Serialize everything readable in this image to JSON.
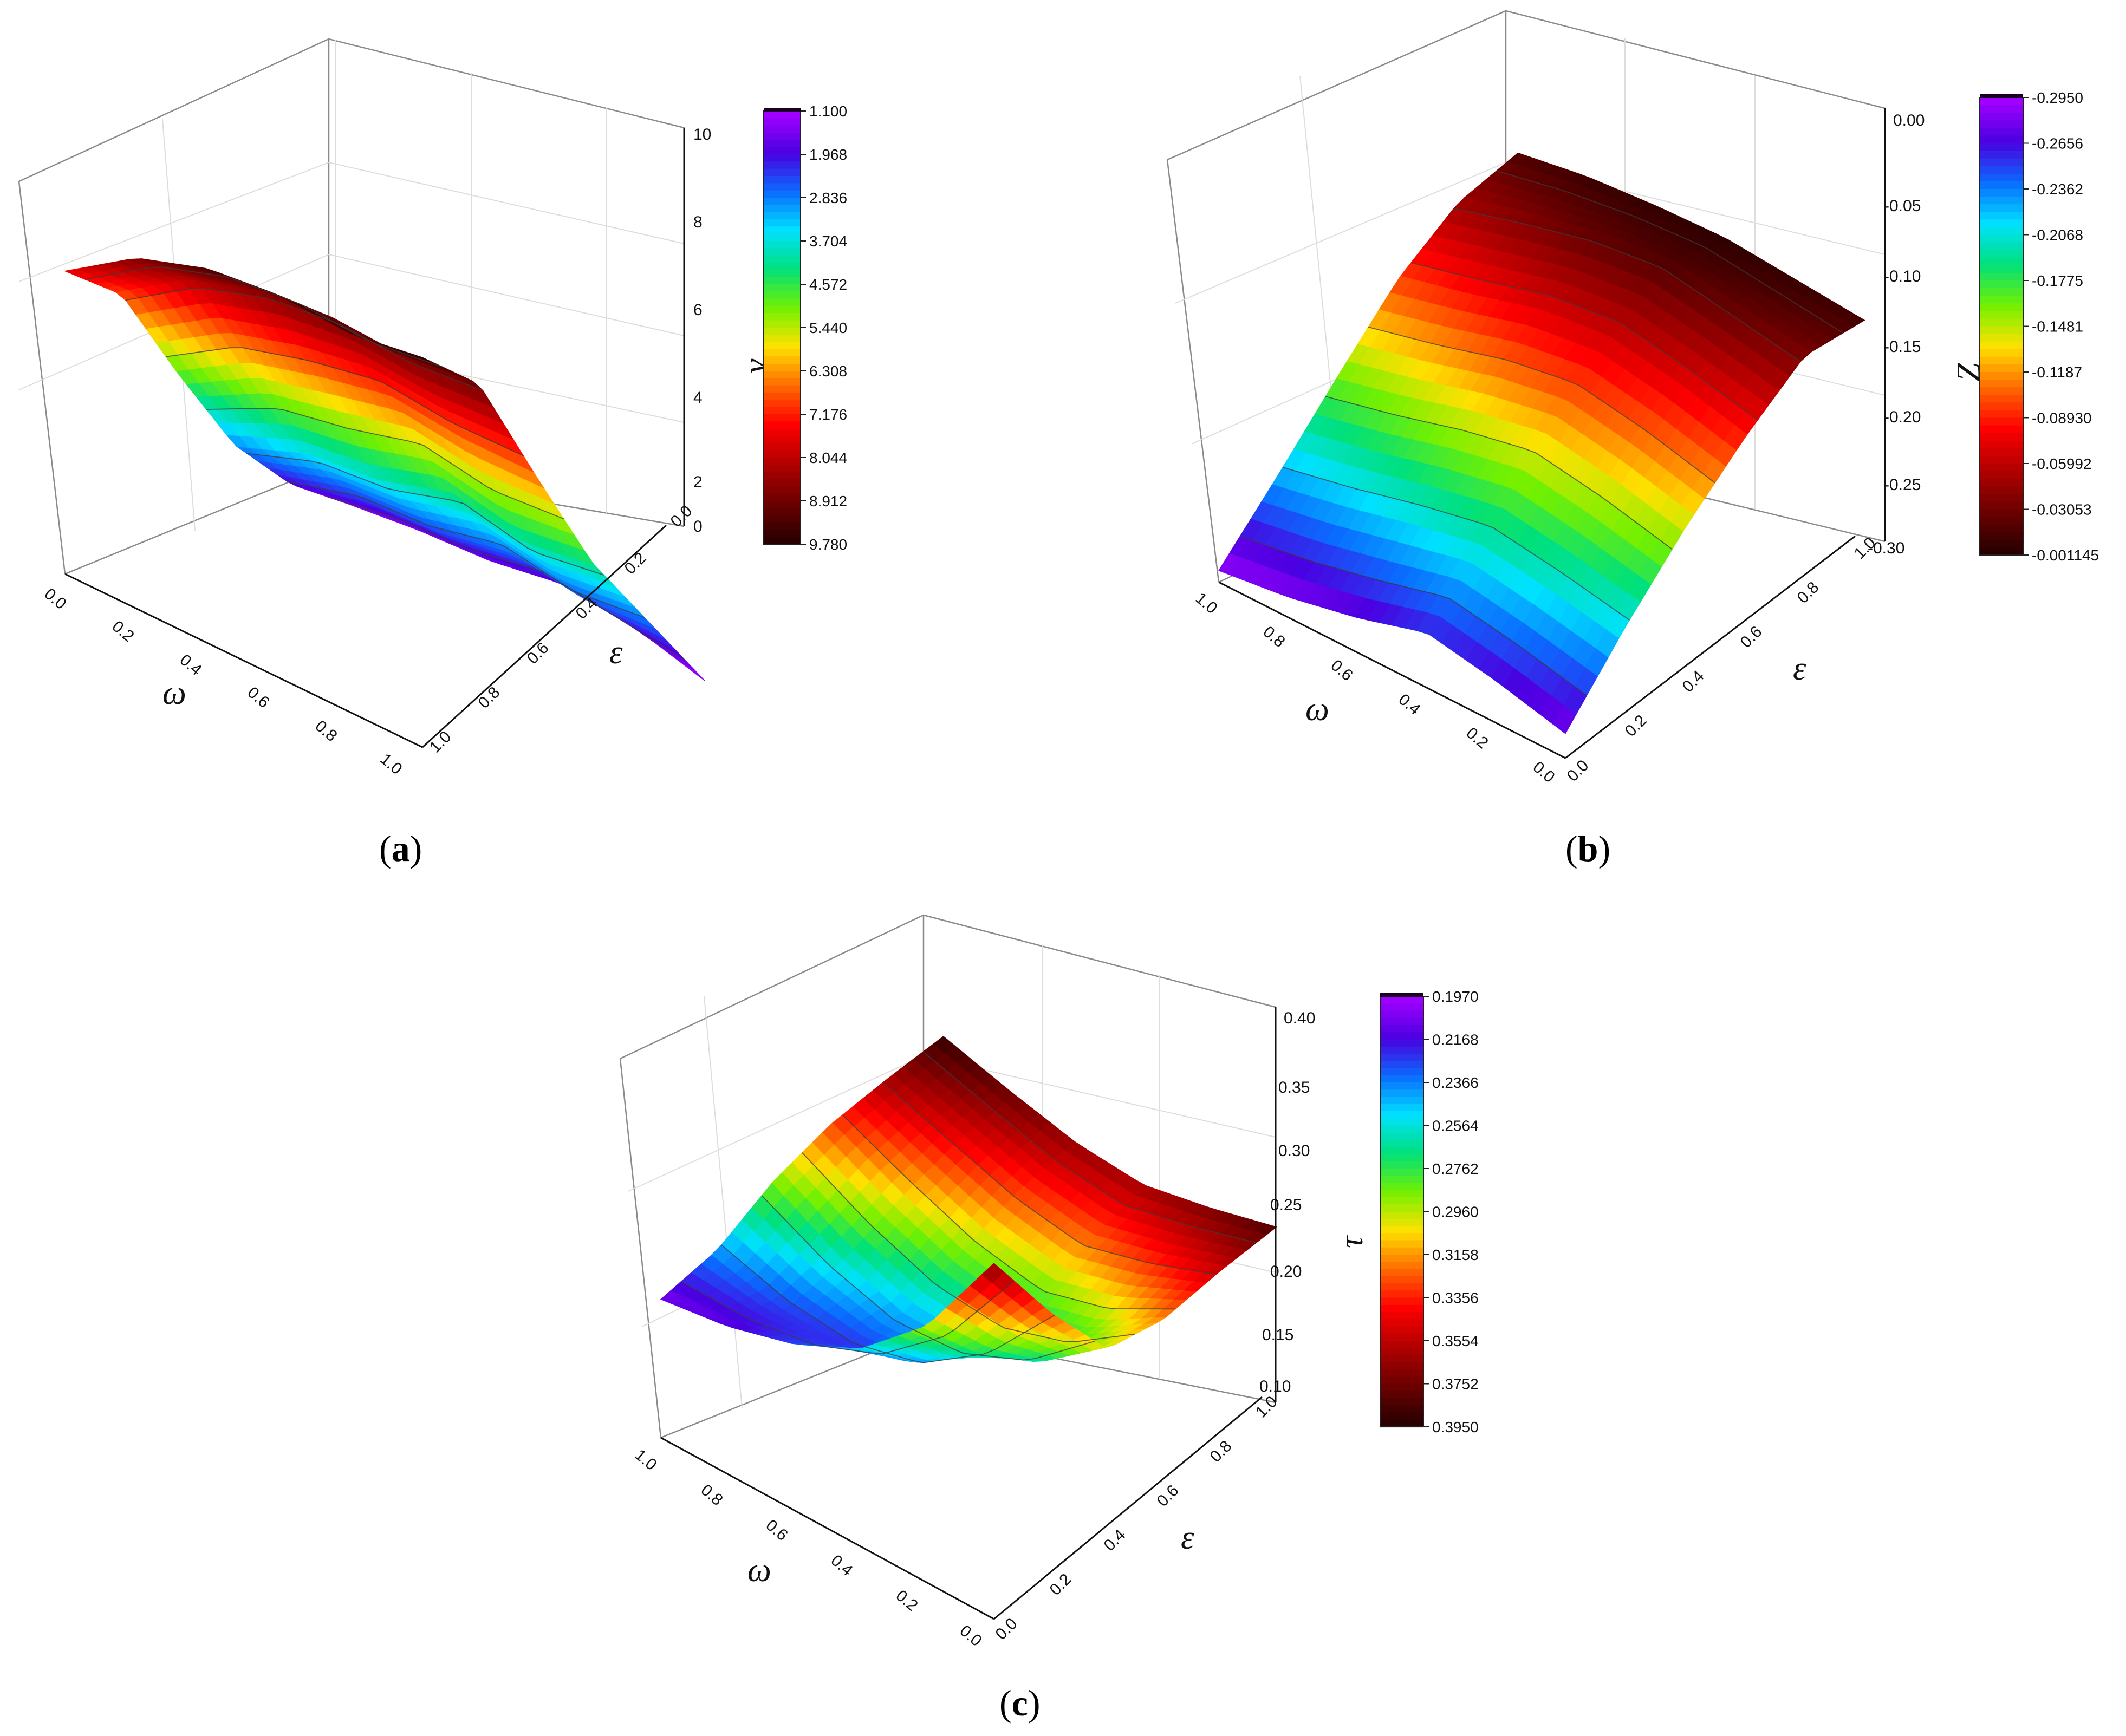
{
  "chart_data": [
    {
      "type": "surface3d",
      "panel": "(a)",
      "panel_letter": "a",
      "x": {
        "label": "ω",
        "range": [
          0,
          1
        ],
        "ticks": [
          "0.0",
          "0.2",
          "0.4",
          "0.6",
          "0.8",
          "1.0"
        ]
      },
      "y": {
        "label": "ε",
        "range": [
          0,
          1
        ],
        "ticks": [
          "0.0",
          "0.2",
          "0.4",
          "0.6",
          "0.8",
          "1.0"
        ]
      },
      "z": {
        "label": "v",
        "label_sub": "Z",
        "range": [
          0,
          10
        ],
        "ticks": [
          "0",
          "2",
          "4",
          "6",
          "8",
          "10"
        ]
      },
      "colorbar": {
        "levels": [
          "1.100",
          "1.968",
          "2.836",
          "3.704",
          "4.572",
          "5.440",
          "6.308",
          "7.176",
          "8.044",
          "8.912",
          "9.780"
        ]
      },
      "surface": {
        "orientation": "a",
        "grid_x": [
          0,
          0.2,
          0.4,
          0.6,
          0.8,
          1.0
        ],
        "grid_y": [
          0,
          0.2,
          0.4,
          0.6,
          0.8,
          1.0
        ],
        "z_by_y": [
          [
            7.6,
            8.8,
            9.4,
            9.6,
            9.5,
            9.78
          ],
          [
            6.9,
            8.1,
            8.7,
            8.9,
            8.8,
            9.0
          ],
          [
            4.8,
            5.9,
            6.4,
            6.8,
            6.6,
            6.6
          ],
          [
            2.9,
            3.6,
            3.8,
            4.4,
            4.0,
            4.3
          ],
          [
            1.8,
            2.3,
            2.4,
            2.8,
            2.5,
            2.7
          ],
          [
            1.2,
            1.4,
            1.5,
            1.8,
            1.6,
            1.1
          ]
        ]
      }
    },
    {
      "type": "surface3d",
      "panel": "(b)",
      "panel_letter": "b",
      "x": {
        "label": "ω",
        "range": [
          0,
          1
        ],
        "ticks": [
          "1.0",
          "0.8",
          "0.6",
          "0.4",
          "0.2",
          "0.0"
        ]
      },
      "y": {
        "label": "ε",
        "range": [
          0,
          1
        ],
        "ticks": [
          "0.0",
          "0.2",
          "0.4",
          "0.6",
          "0.8",
          "1.0"
        ]
      },
      "z": {
        "label": "Z",
        "range": [
          -0.3,
          0.0
        ],
        "ticks": [
          "0.00",
          "-0.05",
          "-0.10",
          "-0.15",
          "-0.20",
          "-0.25",
          "-0.30"
        ]
      },
      "colorbar": {
        "levels": [
          "-0.2950",
          "-0.2656",
          "-0.2362",
          "-0.2068",
          "-0.1775",
          "-0.1481",
          "-0.1187",
          "-0.08930",
          "-0.05992",
          "-0.03053",
          "-0.001145"
        ]
      },
      "surface": {
        "orientation": "b",
        "grid_x": [
          0,
          0.2,
          0.4,
          0.6,
          0.8,
          1.0
        ],
        "grid_y": [
          0,
          0.2,
          0.4,
          0.6,
          0.8,
          1.0
        ],
        "z_by_y": [
          [
            -0.292,
            -0.286,
            -0.276,
            -0.262,
            -0.271,
            -0.283
          ],
          [
            -0.228,
            -0.218,
            -0.206,
            -0.196,
            -0.203,
            -0.212
          ],
          [
            -0.162,
            -0.15,
            -0.136,
            -0.126,
            -0.134,
            -0.146
          ],
          [
            -0.098,
            -0.086,
            -0.072,
            -0.066,
            -0.074,
            -0.086
          ],
          [
            -0.048,
            -0.034,
            -0.022,
            -0.016,
            -0.024,
            -0.032
          ],
          [
            -0.016,
            -0.008,
            -0.004,
            -0.002,
            -0.006,
            -0.01
          ]
        ]
      }
    },
    {
      "type": "surface3d",
      "panel": "(c)",
      "panel_letter": "c",
      "x": {
        "label": "ω",
        "range": [
          0,
          1
        ],
        "ticks": [
          "1.0",
          "0.8",
          "0.6",
          "0.4",
          "0.2",
          "0.0"
        ]
      },
      "y": {
        "label": "ε",
        "range": [
          0,
          1
        ],
        "ticks": [
          "0.0",
          "0.2",
          "0.4",
          "0.6",
          "0.8",
          "1.0"
        ]
      },
      "z": {
        "label": "τ",
        "range": [
          0.1,
          0.4
        ],
        "ticks": [
          "0.40",
          "0.35",
          "0.30",
          "0.25",
          "0.20",
          "0.15",
          "0.10"
        ]
      },
      "colorbar": {
        "levels": [
          "0.1970",
          "0.2168",
          "0.2366",
          "0.2564",
          "0.2762",
          "0.2960",
          "0.3158",
          "0.3356",
          "0.3554",
          "0.3752",
          "0.3950"
        ]
      },
      "surface": {
        "orientation": "b",
        "grid_x": [
          0,
          0.2,
          0.4,
          0.6,
          0.8,
          1.0
        ],
        "grid_y": [
          0,
          0.2,
          0.4,
          0.6,
          0.8,
          1.0
        ],
        "z_by_y": [
          [
            0.205,
            0.212,
            0.226,
            0.25,
            0.295,
            0.37
          ],
          [
            0.24,
            0.226,
            0.222,
            0.236,
            0.272,
            0.33
          ],
          [
            0.29,
            0.262,
            0.244,
            0.244,
            0.262,
            0.3
          ],
          [
            0.33,
            0.306,
            0.286,
            0.276,
            0.29,
            0.32
          ],
          [
            0.362,
            0.346,
            0.33,
            0.322,
            0.336,
            0.354
          ],
          [
            0.392,
            0.378,
            0.366,
            0.362,
            0.372,
            0.385
          ]
        ]
      }
    }
  ],
  "colormap": [
    "#2a0000",
    "#6e0000",
    "#b20000",
    "#ff0000",
    "#ff6a00",
    "#ffe100",
    "#73f000",
    "#00e07a",
    "#00e1ff",
    "#0a6cff",
    "#4a00e0",
    "#a000ff"
  ]
}
